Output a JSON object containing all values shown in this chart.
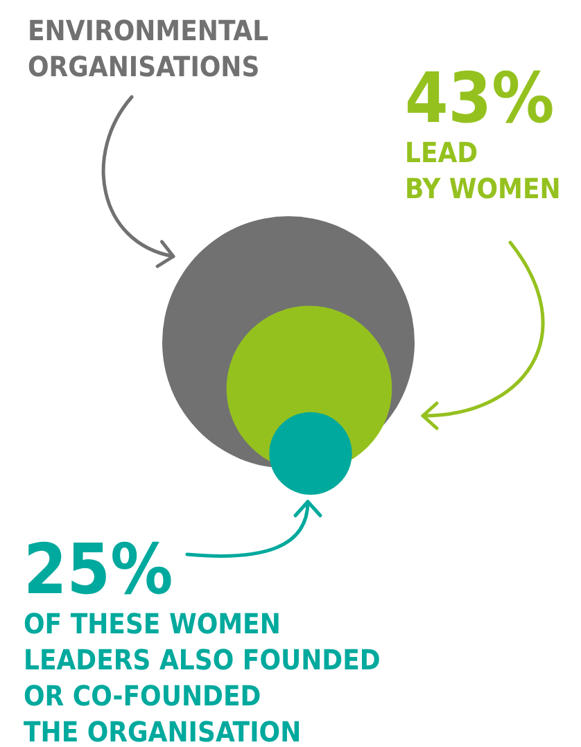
{
  "chart_data": {
    "type": "other",
    "title": "ENVIRONMENTAL\nORGANISATIONS",
    "categories": [
      "LEAD\nBY WOMEN",
      "OF THESE WOMEN\nLEADERS ALSO FOUNDED\nOR CO-FOUNDED\nTHE ORGANISATION"
    ],
    "values": [
      43,
      25
    ],
    "value_labels": [
      "43%",
      "25%"
    ],
    "colors": [
      "#95c11f",
      "#00a99d"
    ],
    "color": "#717171"
  }
}
